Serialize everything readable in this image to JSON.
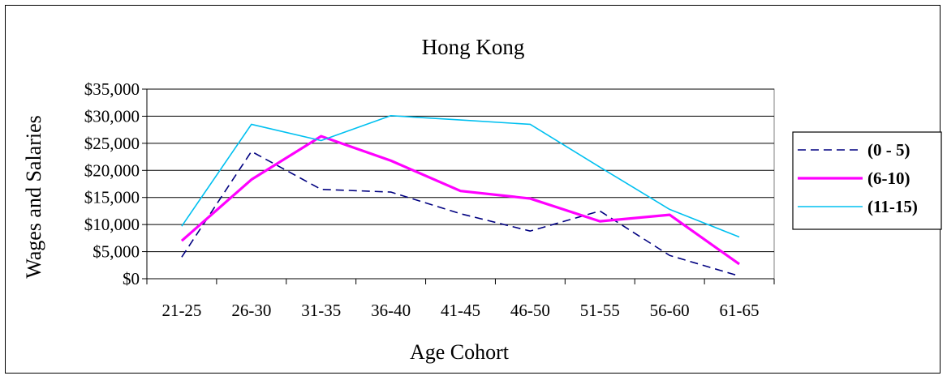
{
  "chart_data": {
    "type": "line",
    "title": "Hong Kong",
    "xlabel": "Age Cohort",
    "ylabel": "Wages and Salaries",
    "categories": [
      "21-25",
      "26-30",
      "31-35",
      "36-40",
      "41-45",
      "46-50",
      "51-55",
      "56-60",
      "61-65"
    ],
    "yticks": [
      "$0",
      "$5,000",
      "$10,000",
      "$15,000",
      "$20,000",
      "$25,000",
      "$30,000",
      "$35,000"
    ],
    "ylim": [
      0,
      35000
    ],
    "grid": true,
    "legend_position": "right",
    "series": [
      {
        "name": "(0 - 5)",
        "color": "#000080",
        "style": "dashed",
        "values": [
          4000,
          23500,
          16500,
          16000,
          12000,
          8800,
          12500,
          4300,
          500
        ]
      },
      {
        "name": "(6-10)",
        "color": "#ff00ff",
        "style": "solid-thick",
        "values": [
          7000,
          18300,
          26300,
          21800,
          16200,
          14800,
          10600,
          11800,
          2700
        ]
      },
      {
        "name": "(11-15)",
        "color": "#00c0f0",
        "style": "solid-thin",
        "values": [
          9700,
          28500,
          25500,
          30100,
          29300,
          28500,
          20600,
          12800,
          7700
        ]
      }
    ]
  }
}
